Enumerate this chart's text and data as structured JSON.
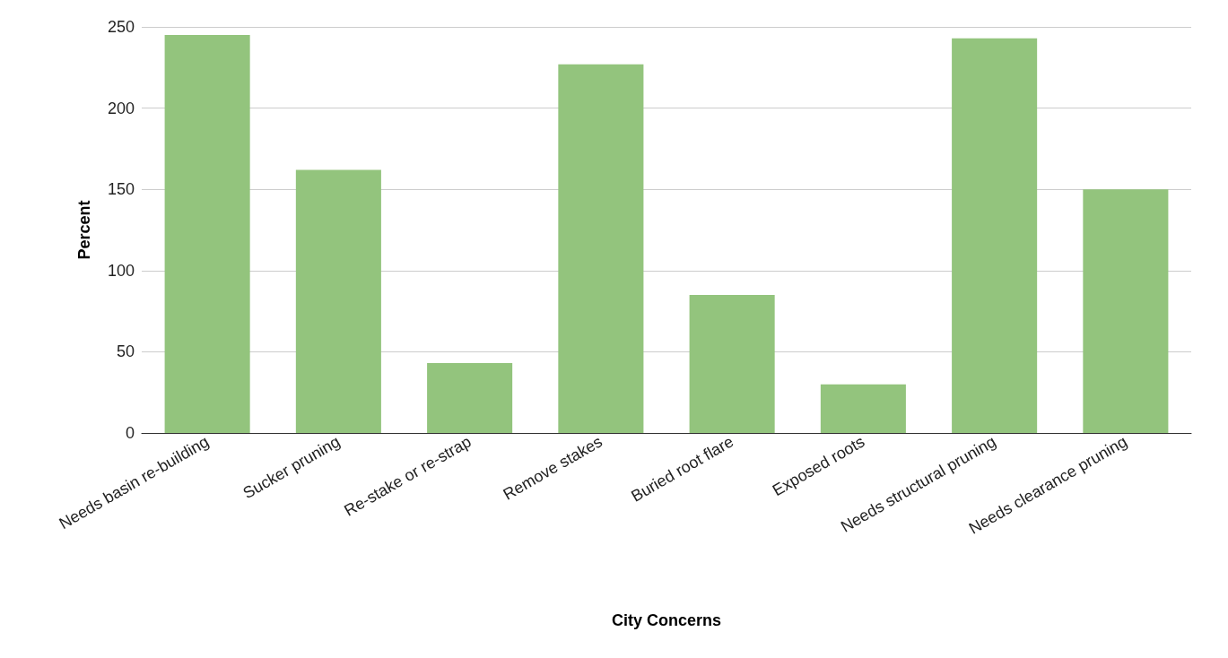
{
  "chart_data": {
    "type": "bar",
    "xlabel": "City Concerns",
    "ylabel": "Percent",
    "categories": [
      "Needs basin re-building",
      "Sucker pruning",
      "Re-stake or re-strap",
      "Remove stakes",
      "Buried root flare",
      "Exposed roots",
      "Needs structural pruning",
      "Needs clearance pruning"
    ],
    "values": [
      245,
      162,
      43,
      227,
      85,
      30,
      243,
      150
    ],
    "color": "#93c47d",
    "ylim": [
      0,
      250
    ],
    "yticks": [
      0,
      50,
      100,
      150,
      200,
      250
    ],
    "grid": "y"
  }
}
